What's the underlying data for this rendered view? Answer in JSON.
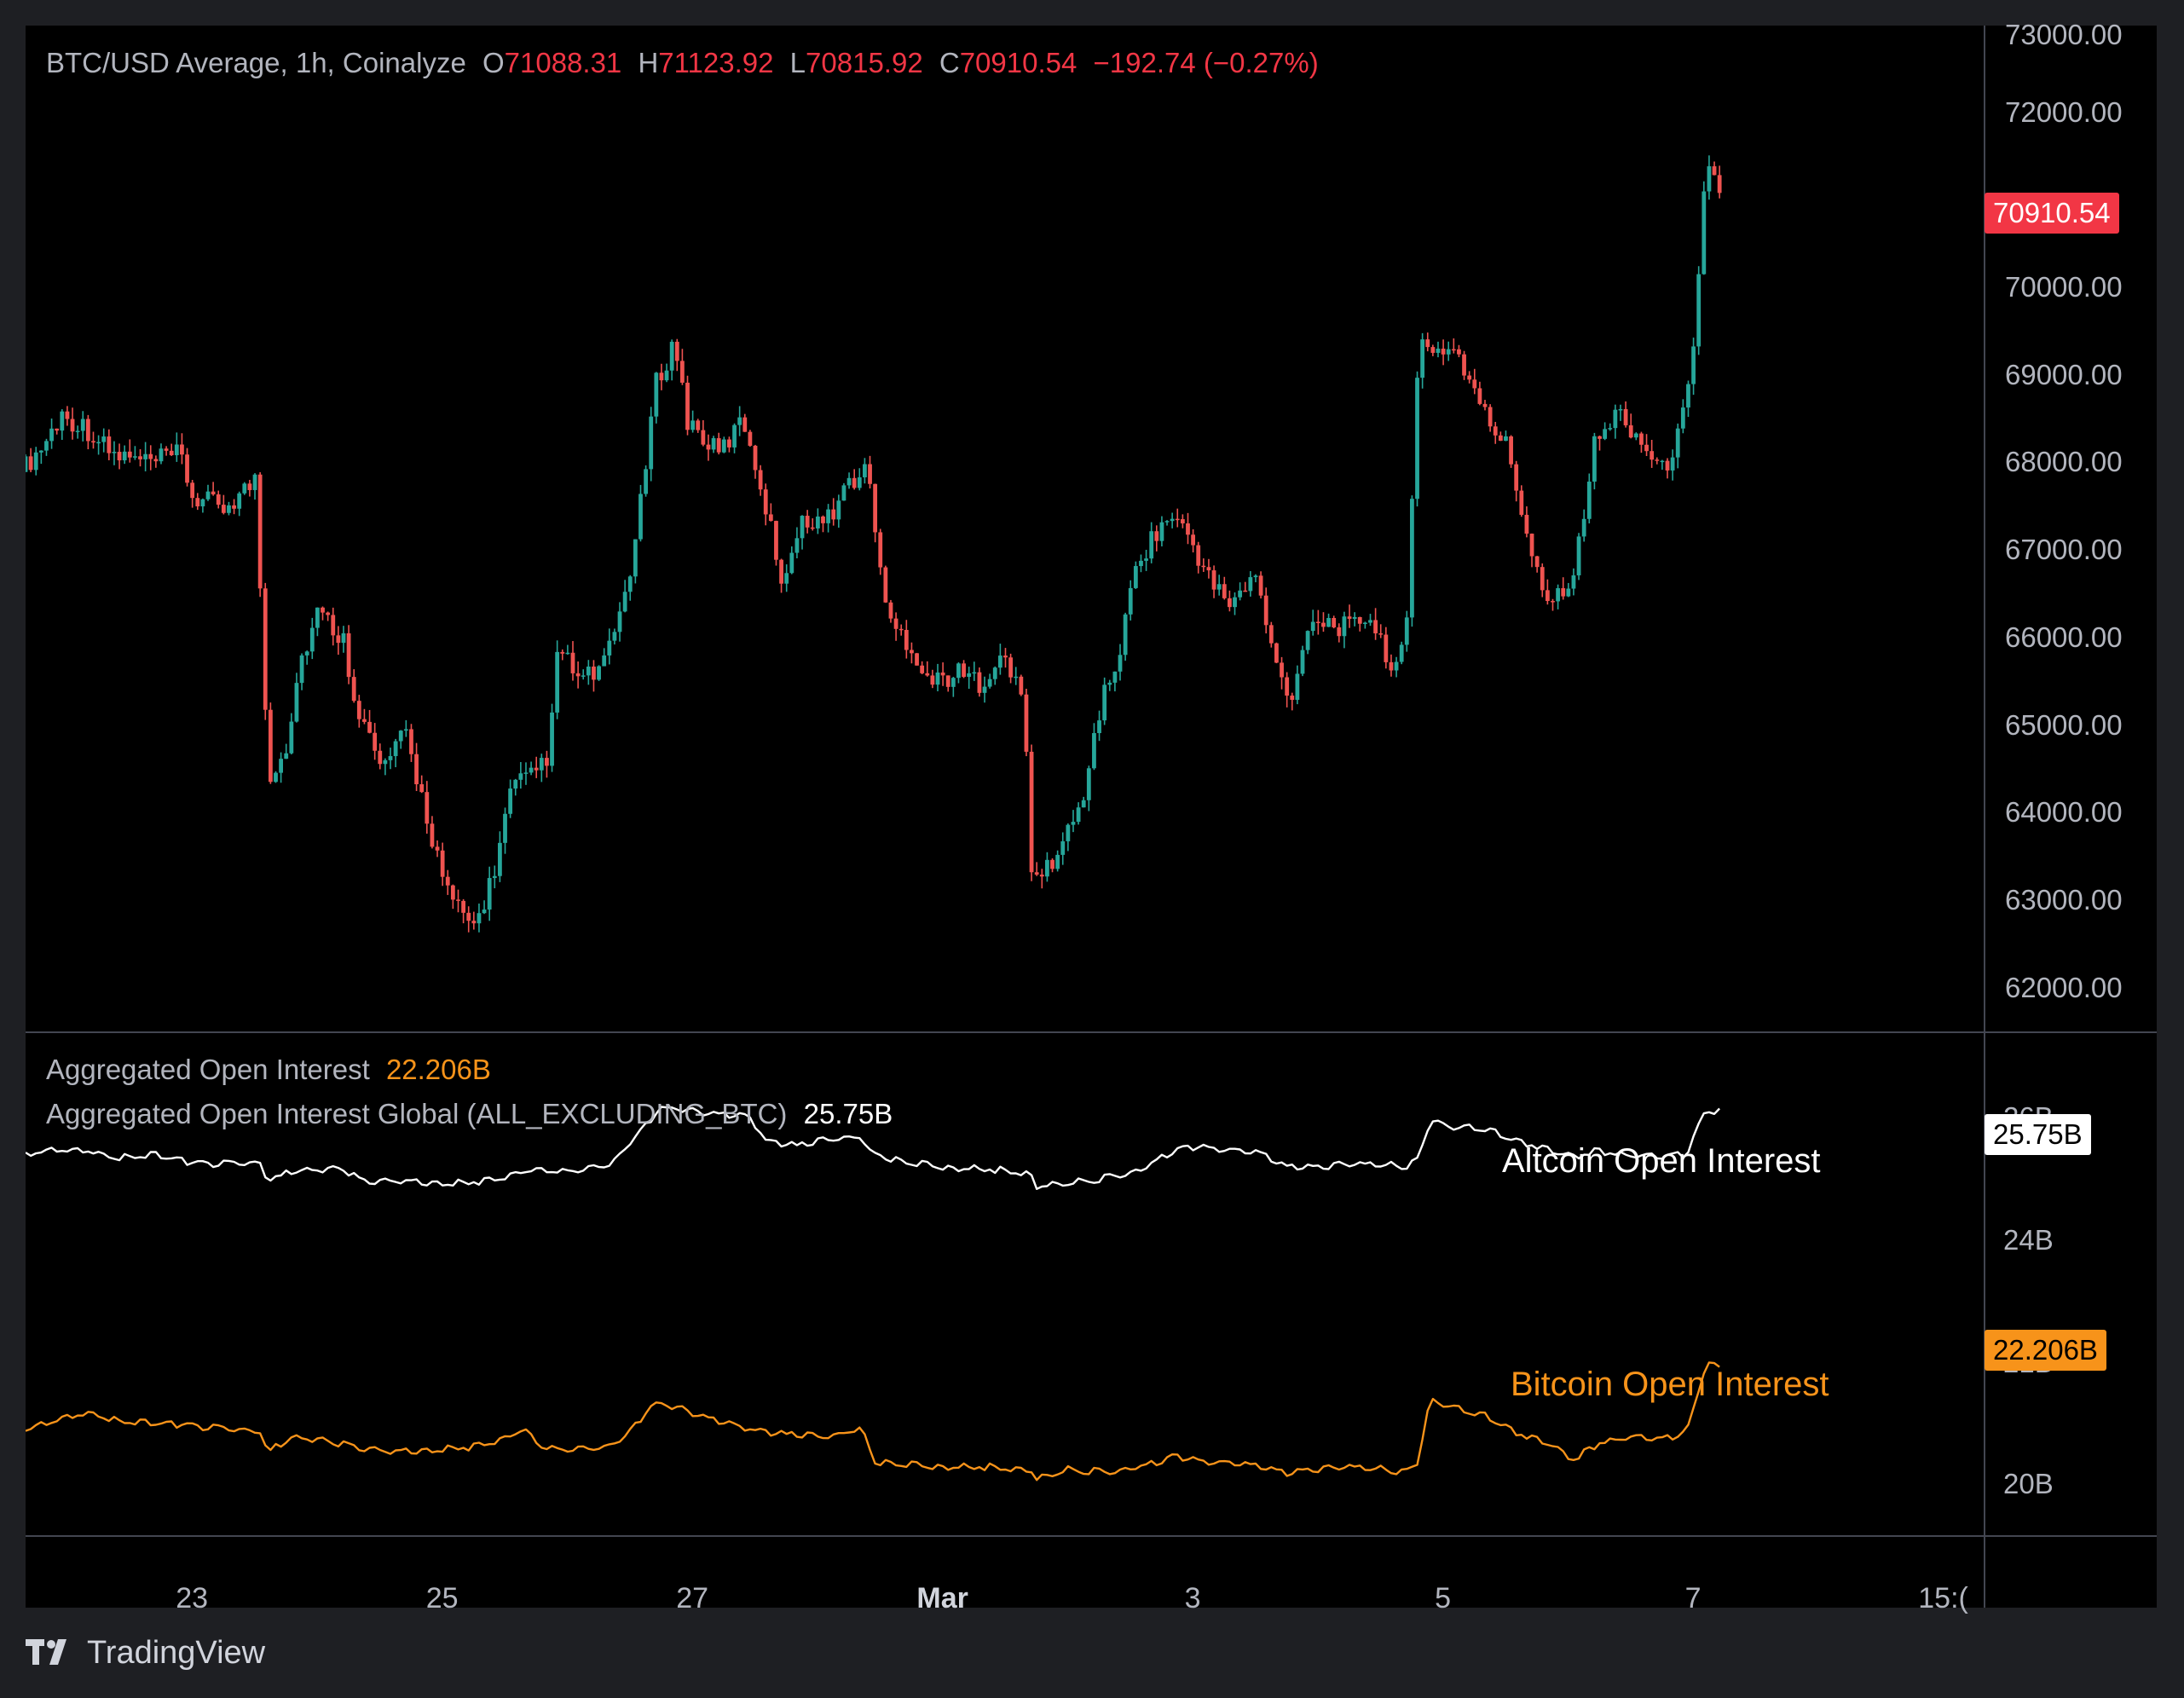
{
  "header": {
    "symbol": "BTC/USD Average, 1h, Coinalyze",
    "open_label": "O",
    "open": "71088.31",
    "high_label": "H",
    "high": "71123.92",
    "low_label": "L",
    "low": "70815.92",
    "close_label": "C",
    "close": "70910.54",
    "change": "−192.74 (−0.27%)"
  },
  "oi_legend": {
    "btc_label": "Aggregated Open Interest",
    "btc_value": "22.206B",
    "alt_label": "Aggregated Open Interest Global (ALL_EXCLUDING_BTC)",
    "alt_value": "25.75B"
  },
  "annotations": {
    "altcoin": "Altcoin Open Interest",
    "bitcoin": "Bitcoin Open Interest"
  },
  "price_badge": "70910.54",
  "alt_badge": "25.75B",
  "btc_badge": "22.206B",
  "brand": "TradingView",
  "colors": {
    "up": "#26a69a",
    "down": "#ef5350",
    "altcoin_line": "#ffffff",
    "bitcoin_line": "#f7931a",
    "background": "#000000"
  },
  "chart_data": [
    {
      "type": "candlestick",
      "title": "BTC/USD Average, 1h, Coinalyze",
      "interval": "1h",
      "y_axis_position": "right",
      "ylim": [
        61500,
        73000
      ],
      "y_ticks": [
        "73000.00",
        "72000.00",
        "70000.00",
        "69000.00",
        "68000.00",
        "67000.00",
        "66000.00",
        "65000.00",
        "64000.00",
        "63000.00",
        "62000.00"
      ],
      "x_ticks": [
        "23",
        "25",
        "27",
        "Mar",
        "3",
        "5",
        "7",
        "15:("
      ],
      "x_tick_days": [
        23,
        25,
        27,
        29,
        31,
        33,
        35,
        37
      ],
      "x_range_days": [
        21.67,
        37.33
      ],
      "last_price": 70910.54,
      "anchors": [
        [
          21.67,
          67900
        ],
        [
          21.85,
          68200
        ],
        [
          22.0,
          68550
        ],
        [
          22.2,
          68400
        ],
        [
          22.4,
          68100
        ],
        [
          22.7,
          68000
        ],
        [
          22.95,
          68100
        ],
        [
          23.05,
          67600
        ],
        [
          23.3,
          67500
        ],
        [
          23.55,
          67800
        ],
        [
          23.6,
          66200
        ],
        [
          23.65,
          64400
        ],
        [
          23.8,
          64800
        ],
        [
          23.9,
          65700
        ],
        [
          24.05,
          66300
        ],
        [
          24.25,
          66000
        ],
        [
          24.35,
          65300
        ],
        [
          24.55,
          64500
        ],
        [
          24.75,
          64900
        ],
        [
          24.95,
          63800
        ],
        [
          25.1,
          63000
        ],
        [
          25.3,
          62700
        ],
        [
          25.45,
          63300
        ],
        [
          25.6,
          64300
        ],
        [
          25.75,
          64400
        ],
        [
          25.9,
          64700
        ],
        [
          25.97,
          65900
        ],
        [
          26.15,
          65500
        ],
        [
          26.35,
          65700
        ],
        [
          26.5,
          66500
        ],
        [
          26.6,
          67200
        ],
        [
          26.75,
          68900
        ],
        [
          26.9,
          69400
        ],
        [
          27.0,
          68500
        ],
        [
          27.25,
          68100
        ],
        [
          27.45,
          68500
        ],
        [
          27.6,
          67700
        ],
        [
          27.75,
          66700
        ],
        [
          27.95,
          67400
        ],
        [
          28.1,
          67300
        ],
        [
          28.3,
          67800
        ],
        [
          28.45,
          67900
        ],
        [
          28.6,
          66200
        ],
        [
          28.75,
          66000
        ],
        [
          28.95,
          65500
        ],
        [
          29.15,
          65600
        ],
        [
          29.35,
          65500
        ],
        [
          29.5,
          65800
        ],
        [
          29.7,
          65300
        ],
        [
          29.75,
          63200
        ],
        [
          29.95,
          63500
        ],
        [
          30.15,
          64100
        ],
        [
          30.3,
          65200
        ],
        [
          30.45,
          65800
        ],
        [
          30.6,
          66900
        ],
        [
          30.85,
          67400
        ],
        [
          31.0,
          67200
        ],
        [
          31.2,
          66600
        ],
        [
          31.35,
          66400
        ],
        [
          31.55,
          66700
        ],
        [
          31.7,
          65700
        ],
        [
          31.85,
          65300
        ],
        [
          31.95,
          66200
        ],
        [
          32.1,
          66200
        ],
        [
          32.3,
          66100
        ],
        [
          32.45,
          66300
        ],
        [
          32.6,
          65700
        ],
        [
          32.75,
          66000
        ],
        [
          32.85,
          69400
        ],
        [
          33.0,
          69300
        ],
        [
          33.15,
          69300
        ],
        [
          33.35,
          68600
        ],
        [
          33.55,
          68200
        ],
        [
          33.75,
          67000
        ],
        [
          33.9,
          66400
        ],
        [
          34.1,
          66800
        ],
        [
          34.25,
          68200
        ],
        [
          34.45,
          68600
        ],
        [
          34.6,
          68300
        ],
        [
          34.8,
          67900
        ],
        [
          34.95,
          68400
        ],
        [
          35.05,
          69500
        ],
        [
          35.15,
          71500
        ],
        [
          35.25,
          71088
        ]
      ]
    },
    {
      "type": "line",
      "title": "Aggregated Open Interest Global (ALL_EXCLUDING_BTC)",
      "series_name": "Altcoin Open Interest",
      "unit": "B",
      "ylim": [
        20,
        25.75
      ],
      "y_ticks": [
        "24B"
      ],
      "last_value": 25.75,
      "anchors": [
        [
          21.67,
          24.4
        ],
        [
          21.95,
          24.55
        ],
        [
          22.15,
          24.5
        ],
        [
          22.4,
          24.3
        ],
        [
          22.7,
          24.4
        ],
        [
          23.0,
          24.15
        ],
        [
          23.3,
          24.1
        ],
        [
          23.55,
          24.1
        ],
        [
          23.6,
          23.6
        ],
        [
          23.8,
          23.9
        ],
        [
          24.05,
          23.95
        ],
        [
          24.2,
          24.0
        ],
        [
          24.35,
          23.6
        ],
        [
          24.65,
          23.6
        ],
        [
          24.95,
          23.55
        ],
        [
          25.2,
          23.55
        ],
        [
          25.45,
          23.7
        ],
        [
          25.65,
          23.9
        ],
        [
          25.95,
          23.9
        ],
        [
          26.15,
          23.95
        ],
        [
          26.35,
          24.1
        ],
        [
          26.55,
          24.95
        ],
        [
          26.75,
          25.75
        ],
        [
          26.95,
          25.7
        ],
        [
          27.2,
          25.55
        ],
        [
          27.45,
          25.5
        ],
        [
          27.6,
          24.75
        ],
        [
          27.85,
          24.65
        ],
        [
          28.05,
          24.8
        ],
        [
          28.35,
          24.9
        ],
        [
          28.45,
          24.35
        ],
        [
          28.75,
          24.15
        ],
        [
          29.1,
          24.0
        ],
        [
          29.4,
          23.95
        ],
        [
          29.7,
          23.85
        ],
        [
          29.75,
          23.45
        ],
        [
          30.0,
          23.55
        ],
        [
          30.3,
          23.7
        ],
        [
          30.6,
          23.95
        ],
        [
          30.85,
          24.5
        ],
        [
          31.05,
          24.6
        ],
        [
          31.3,
          24.5
        ],
        [
          31.55,
          24.4
        ],
        [
          31.75,
          24.0
        ],
        [
          31.95,
          24.0
        ],
        [
          32.2,
          24.1
        ],
        [
          32.45,
          24.1
        ],
        [
          32.7,
          24.05
        ],
        [
          32.8,
          24.25
        ],
        [
          32.9,
          25.4
        ],
        [
          33.1,
          25.2
        ],
        [
          33.35,
          25.15
        ],
        [
          33.6,
          24.8
        ],
        [
          33.85,
          24.55
        ],
        [
          34.05,
          24.35
        ],
        [
          34.25,
          24.5
        ],
        [
          34.5,
          24.35
        ],
        [
          34.75,
          24.3
        ],
        [
          34.95,
          24.4
        ],
        [
          35.1,
          25.7
        ],
        [
          35.25,
          25.65
        ]
      ]
    },
    {
      "type": "line",
      "title": "Aggregated Open Interest",
      "series_name": "Bitcoin Open Interest",
      "unit": "B",
      "ylim": [
        19.0,
        23.0
      ],
      "y_ticks": [
        "20B"
      ],
      "last_value": 22.206,
      "anchors": [
        [
          21.67,
          20.95
        ],
        [
          21.95,
          21.2
        ],
        [
          22.2,
          21.3
        ],
        [
          22.4,
          21.15
        ],
        [
          22.7,
          21.1
        ],
        [
          23.0,
          21.05
        ],
        [
          23.3,
          20.95
        ],
        [
          23.55,
          20.9
        ],
        [
          23.6,
          20.5
        ],
        [
          23.8,
          20.8
        ],
        [
          24.05,
          20.75
        ],
        [
          24.3,
          20.6
        ],
        [
          24.6,
          20.5
        ],
        [
          24.95,
          20.55
        ],
        [
          25.2,
          20.6
        ],
        [
          25.45,
          20.75
        ],
        [
          25.65,
          20.95
        ],
        [
          25.8,
          20.6
        ],
        [
          26.05,
          20.55
        ],
        [
          26.3,
          20.6
        ],
        [
          26.45,
          20.8
        ],
        [
          26.7,
          21.5
        ],
        [
          26.9,
          21.4
        ],
        [
          27.1,
          21.2
        ],
        [
          27.4,
          21.0
        ],
        [
          27.6,
          20.9
        ],
        [
          27.85,
          20.85
        ],
        [
          28.1,
          20.8
        ],
        [
          28.35,
          21.0
        ],
        [
          28.45,
          20.3
        ],
        [
          28.75,
          20.25
        ],
        [
          29.1,
          20.2
        ],
        [
          29.4,
          20.2
        ],
        [
          29.7,
          20.15
        ],
        [
          29.75,
          19.95
        ],
        [
          30.0,
          20.15
        ],
        [
          30.3,
          20.1
        ],
        [
          30.6,
          20.2
        ],
        [
          30.85,
          20.4
        ],
        [
          31.1,
          20.3
        ],
        [
          31.35,
          20.25
        ],
        [
          31.55,
          20.2
        ],
        [
          31.75,
          20.05
        ],
        [
          31.95,
          20.15
        ],
        [
          32.25,
          20.2
        ],
        [
          32.55,
          20.15
        ],
        [
          32.7,
          20.1
        ],
        [
          32.8,
          20.3
        ],
        [
          32.9,
          21.6
        ],
        [
          33.1,
          21.4
        ],
        [
          33.35,
          21.25
        ],
        [
          33.6,
          20.9
        ],
        [
          33.85,
          20.7
        ],
        [
          34.05,
          20.35
        ],
        [
          34.25,
          20.7
        ],
        [
          34.5,
          20.8
        ],
        [
          34.75,
          20.75
        ],
        [
          34.95,
          20.9
        ],
        [
          35.1,
          22.3
        ],
        [
          35.25,
          22.2
        ]
      ]
    }
  ]
}
